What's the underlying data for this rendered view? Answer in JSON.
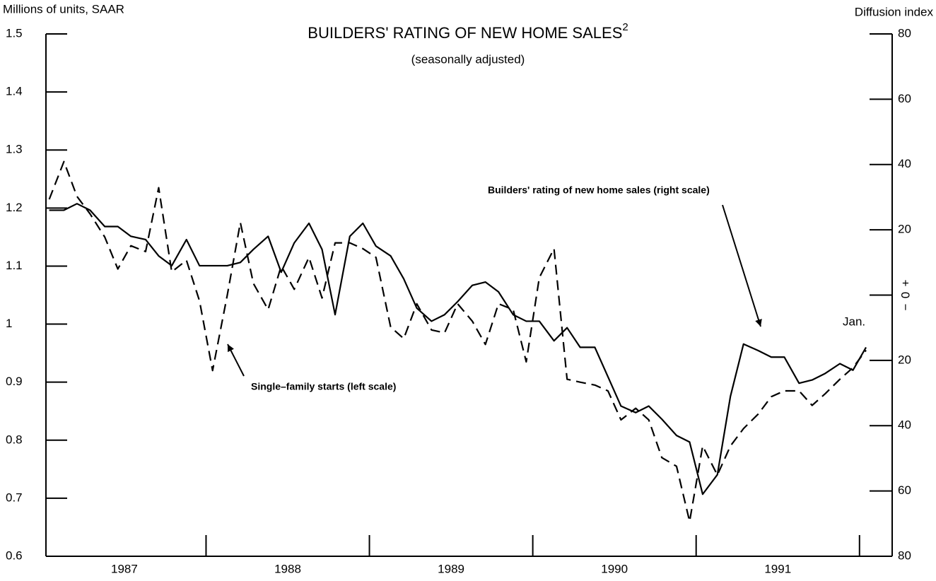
{
  "chart_data": {
    "type": "line",
    "title": "BUILDERS' RATING OF NEW HOME SALES",
    "title_superscript": "2",
    "subtitle": "(seasonally adjusted)",
    "ylabel": "Millions of units, SAAR",
    "y2label": "Diffusion index",
    "x": [
      1987.04,
      1987.13,
      1987.21,
      1987.29,
      1987.38,
      1987.46,
      1987.54,
      1987.63,
      1987.71,
      1987.79,
      1987.88,
      1987.96,
      1988.04,
      1988.13,
      1988.21,
      1988.29,
      1988.38,
      1988.46,
      1988.54,
      1988.63,
      1988.71,
      1988.79,
      1988.88,
      1988.96,
      1989.04,
      1989.13,
      1989.21,
      1989.29,
      1989.38,
      1989.46,
      1989.54,
      1989.63,
      1989.71,
      1989.79,
      1989.88,
      1989.96,
      1990.04,
      1990.13,
      1990.21,
      1990.29,
      1990.38,
      1990.46,
      1990.54,
      1990.63,
      1990.71,
      1990.79,
      1990.88,
      1990.96,
      1991.04,
      1991.13,
      1991.21,
      1991.29,
      1991.38,
      1991.46,
      1991.54,
      1991.63,
      1991.71,
      1991.79,
      1991.88,
      1991.96,
      1992.04
    ],
    "series": [
      {
        "name": "Builders' rating of new home sales (right scale)",
        "color": "#000000",
        "dash": false,
        "axis": "y2",
        "values": [
          26,
          26,
          28,
          26,
          21,
          21,
          18,
          17,
          12,
          9,
          17,
          9,
          9,
          9,
          10,
          14,
          18,
          7,
          16,
          22,
          14,
          -6,
          18,
          22,
          15,
          12,
          5,
          -4,
          -8,
          -6,
          -2,
          3,
          4,
          1,
          -6,
          -8,
          -8,
          -14,
          -10,
          -16,
          -16,
          -25,
          -34,
          -36,
          -34,
          -38,
          -43,
          -45,
          -61,
          -55,
          -31,
          -15,
          -17,
          -19,
          -19,
          -27,
          -26,
          -24,
          -21,
          -23,
          -16
        ]
      },
      {
        "name": "Single–family starts (left scale)",
        "color": "#000000",
        "dash": true,
        "values": [
          1.215,
          1.28,
          1.22,
          1.19,
          1.15,
          1.095,
          1.135,
          1.125,
          1.235,
          1.09,
          1.11,
          1.04,
          0.92,
          1.05,
          1.175,
          1.07,
          1.025,
          1.1,
          1.06,
          1.115,
          1.045,
          1.14,
          1.14,
          1.13,
          1.115,
          0.995,
          0.975,
          1.035,
          0.99,
          0.985,
          1.035,
          1.005,
          0.965,
          1.035,
          1.025,
          0.935,
          1.08,
          1.13,
          0.905,
          0.9,
          0.895,
          0.885,
          0.835,
          0.855,
          0.835,
          0.77,
          0.755,
          0.66,
          0.79,
          0.74,
          0.79,
          0.82,
          0.845,
          0.875,
          0.885,
          0.885,
          0.86,
          0.88,
          0.905,
          0.925,
          0.955
        ]
      }
    ],
    "xlim": [
      1987.02,
      1992.2
    ],
    "xticks": [
      1988,
      1989,
      1990,
      1991,
      1992
    ],
    "year_labels": [
      {
        "value": 1987.5,
        "label": "1987"
      },
      {
        "value": 1988.5,
        "label": "1988"
      },
      {
        "value": 1989.5,
        "label": "1989"
      },
      {
        "value": 1990.5,
        "label": "1990"
      },
      {
        "value": 1991.5,
        "label": "1991"
      }
    ],
    "ylim": [
      0.6,
      1.5
    ],
    "yticks": [
      1.5,
      1.4,
      1.3,
      1.2,
      1.1,
      1,
      0.9,
      0.8,
      0.7,
      0.6
    ],
    "y2lim": [
      -80,
      80
    ],
    "y2ticks": [
      80,
      60,
      40,
      20,
      0,
      {
        "value": -20,
        "label": "20"
      },
      {
        "value": -40,
        "label": "40"
      },
      {
        "value": -60,
        "label": "60"
      },
      {
        "value": -80,
        "label": "80"
      }
    ],
    "y2_zero_signs": [
      "+",
      "−"
    ],
    "end_label": "Jan.",
    "grid": false
  }
}
